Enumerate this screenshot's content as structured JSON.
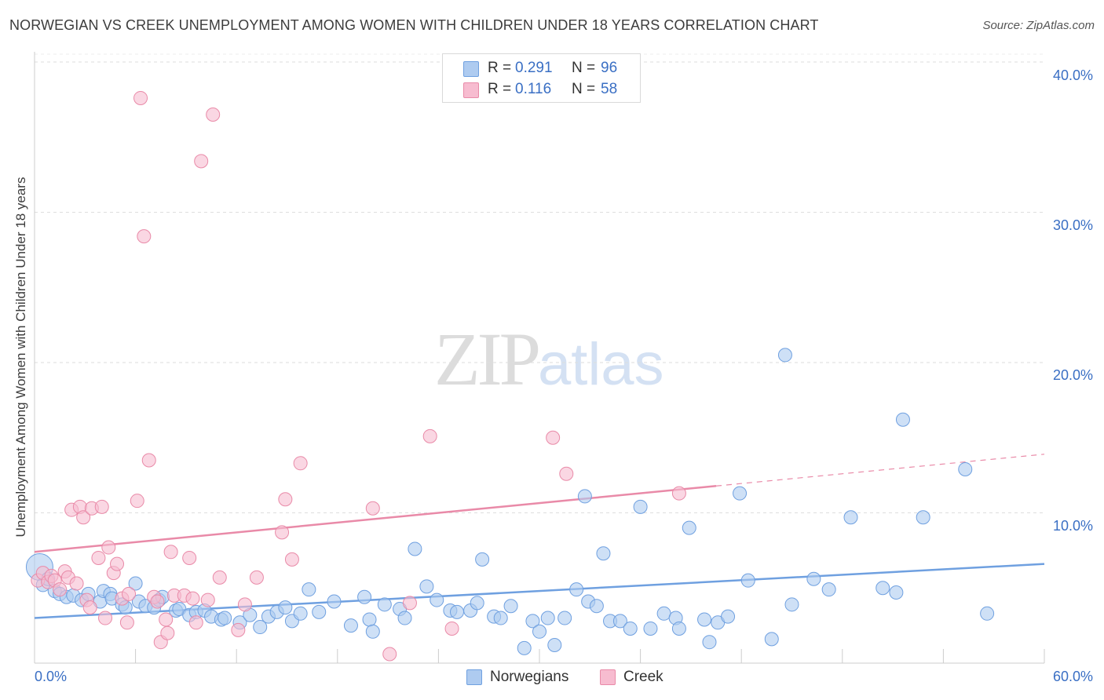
{
  "title": "NORWEGIAN VS CREEK UNEMPLOYMENT AMONG WOMEN WITH CHILDREN UNDER 18 YEARS CORRELATION CHART",
  "source": "Source: ZipAtlas.com",
  "watermark": {
    "part1": "ZIP",
    "part2": "atlas"
  },
  "legend_top": [
    {
      "r_label": "R =",
      "r_value": "0.291",
      "n_label": "N =",
      "n_value": "96",
      "color": "#aecbf0"
    },
    {
      "r_label": "R =",
      "r_value": "0.116",
      "n_label": "N =",
      "n_value": "58",
      "color": "#f7bcd0"
    }
  ],
  "legend_bottom": [
    {
      "label": "Norwegians",
      "color": "#aecbf0"
    },
    {
      "label": "Creek",
      "color": "#f7bcd0"
    }
  ],
  "axis": {
    "y_title": "Unemployment Among Women with Children Under 18 years",
    "x_min_label": "0.0%",
    "x_max_label": "60.0%",
    "y_labels": [
      "40.0%",
      "30.0%",
      "20.0%",
      "10.0%"
    ]
  },
  "chart_data": {
    "type": "scatter",
    "xlim": [
      0,
      60
    ],
    "ylim": [
      0,
      40
    ],
    "xlabel": "",
    "ylabel": "Unemployment Among Women with Children Under 18 years",
    "grid": true,
    "legend_position": "top-center",
    "series": [
      {
        "name": "Norwegians",
        "color": "#6fa0e0",
        "fill": "#aecbf0",
        "r": 0.291,
        "n": 96,
        "trend": {
          "x": [
            0,
            60
          ],
          "y": [
            3.0,
            6.6
          ],
          "dashed_from": null
        },
        "points": [
          [
            0.3,
            6.4
          ],
          [
            0.5,
            5.2
          ],
          [
            0.8,
            5.6
          ],
          [
            1.2,
            4.8
          ],
          [
            1.5,
            4.6
          ],
          [
            1.9,
            4.4
          ],
          [
            2.3,
            4.5
          ],
          [
            2.8,
            4.2
          ],
          [
            3.2,
            4.6
          ],
          [
            3.9,
            4.1
          ],
          [
            4.1,
            4.8
          ],
          [
            4.5,
            4.6
          ],
          [
            4.6,
            4.3
          ],
          [
            5.2,
            3.9
          ],
          [
            5.4,
            3.7
          ],
          [
            6.0,
            5.3
          ],
          [
            6.2,
            4.1
          ],
          [
            6.6,
            3.8
          ],
          [
            7.1,
            3.7
          ],
          [
            7.4,
            4.2
          ],
          [
            7.6,
            4.4
          ],
          [
            8.4,
            3.5
          ],
          [
            8.6,
            3.6
          ],
          [
            9.2,
            3.2
          ],
          [
            9.6,
            3.4
          ],
          [
            10.1,
            3.5
          ],
          [
            10.5,
            3.1
          ],
          [
            11.1,
            2.9
          ],
          [
            11.3,
            3.0
          ],
          [
            12.2,
            2.7
          ],
          [
            12.8,
            3.2
          ],
          [
            13.4,
            2.4
          ],
          [
            13.9,
            3.1
          ],
          [
            14.4,
            3.4
          ],
          [
            14.9,
            3.7
          ],
          [
            15.3,
            2.8
          ],
          [
            15.8,
            3.3
          ],
          [
            16.3,
            4.9
          ],
          [
            16.9,
            3.4
          ],
          [
            17.8,
            4.1
          ],
          [
            18.8,
            2.5
          ],
          [
            19.6,
            4.4
          ],
          [
            19.9,
            2.9
          ],
          [
            20.1,
            2.1
          ],
          [
            20.8,
            3.9
          ],
          [
            21.7,
            3.6
          ],
          [
            22.0,
            3.0
          ],
          [
            22.6,
            7.6
          ],
          [
            23.3,
            5.1
          ],
          [
            23.9,
            4.2
          ],
          [
            24.7,
            3.5
          ],
          [
            25.1,
            3.4
          ],
          [
            25.9,
            3.5
          ],
          [
            26.3,
            4.0
          ],
          [
            26.6,
            6.9
          ],
          [
            27.3,
            3.1
          ],
          [
            27.7,
            3.0
          ],
          [
            28.3,
            3.8
          ],
          [
            29.1,
            1.0
          ],
          [
            29.6,
            2.8
          ],
          [
            30.0,
            2.1
          ],
          [
            30.5,
            3.0
          ],
          [
            30.9,
            1.2
          ],
          [
            31.5,
            3.0
          ],
          [
            32.2,
            4.9
          ],
          [
            32.7,
            11.1
          ],
          [
            32.9,
            4.1
          ],
          [
            33.4,
            3.8
          ],
          [
            33.8,
            7.3
          ],
          [
            34.2,
            2.8
          ],
          [
            34.8,
            2.8
          ],
          [
            35.4,
            2.3
          ],
          [
            36.0,
            10.4
          ],
          [
            36.6,
            2.3
          ],
          [
            37.4,
            3.3
          ],
          [
            38.1,
            3.0
          ],
          [
            38.3,
            2.3
          ],
          [
            38.9,
            9.0
          ],
          [
            39.8,
            2.9
          ],
          [
            40.1,
            1.4
          ],
          [
            40.6,
            2.7
          ],
          [
            41.2,
            3.1
          ],
          [
            41.9,
            11.3
          ],
          [
            42.4,
            5.5
          ],
          [
            43.8,
            1.6
          ],
          [
            44.6,
            20.5
          ],
          [
            45.0,
            3.9
          ],
          [
            46.3,
            5.6
          ],
          [
            47.2,
            4.9
          ],
          [
            48.5,
            9.7
          ],
          [
            50.4,
            5.0
          ],
          [
            51.2,
            4.7
          ],
          [
            51.6,
            16.2
          ],
          [
            52.8,
            9.7
          ],
          [
            55.3,
            12.9
          ],
          [
            56.6,
            3.3
          ]
        ],
        "sizes_note": "largest point at x=0.3"
      },
      {
        "name": "Creek",
        "color": "#e98aa8",
        "fill": "#f7bcd0",
        "r": 0.116,
        "n": 58,
        "trend": {
          "x": [
            0,
            60
          ],
          "y": [
            7.4,
            13.9
          ],
          "dashed_from": 40.5
        },
        "points": [
          [
            0.2,
            5.5
          ],
          [
            0.5,
            6.0
          ],
          [
            0.8,
            5.4
          ],
          [
            1.0,
            5.8
          ],
          [
            1.2,
            5.5
          ],
          [
            1.5,
            4.9
          ],
          [
            1.8,
            6.1
          ],
          [
            2.0,
            5.7
          ],
          [
            2.2,
            10.2
          ],
          [
            2.5,
            5.3
          ],
          [
            2.7,
            10.4
          ],
          [
            2.9,
            9.7
          ],
          [
            3.1,
            4.2
          ],
          [
            3.3,
            3.7
          ],
          [
            3.4,
            10.3
          ],
          [
            3.8,
            7.0
          ],
          [
            4.0,
            10.4
          ],
          [
            4.2,
            3.0
          ],
          [
            4.4,
            7.7
          ],
          [
            4.7,
            6.0
          ],
          [
            4.9,
            6.6
          ],
          [
            5.2,
            4.3
          ],
          [
            5.5,
            2.7
          ],
          [
            5.6,
            4.6
          ],
          [
            6.1,
            10.8
          ],
          [
            6.3,
            37.6
          ],
          [
            6.5,
            28.4
          ],
          [
            6.8,
            13.5
          ],
          [
            7.1,
            4.4
          ],
          [
            7.3,
            4.1
          ],
          [
            7.5,
            1.4
          ],
          [
            7.8,
            2.9
          ],
          [
            7.9,
            2.0
          ],
          [
            8.1,
            7.4
          ],
          [
            8.3,
            4.5
          ],
          [
            8.9,
            4.5
          ],
          [
            9.2,
            7.0
          ],
          [
            9.4,
            4.3
          ],
          [
            9.6,
            2.7
          ],
          [
            9.9,
            33.4
          ],
          [
            10.3,
            4.2
          ],
          [
            10.6,
            36.5
          ],
          [
            11.0,
            5.7
          ],
          [
            12.1,
            2.2
          ],
          [
            12.5,
            3.9
          ],
          [
            13.2,
            5.7
          ],
          [
            14.7,
            8.7
          ],
          [
            14.9,
            10.9
          ],
          [
            15.3,
            6.9
          ],
          [
            15.8,
            13.3
          ],
          [
            20.1,
            10.3
          ],
          [
            21.1,
            0.6
          ],
          [
            22.3,
            4.0
          ],
          [
            23.5,
            15.1
          ],
          [
            24.8,
            2.3
          ],
          [
            30.8,
            15.0
          ],
          [
            31.6,
            12.6
          ],
          [
            38.3,
            11.3
          ]
        ]
      }
    ]
  }
}
